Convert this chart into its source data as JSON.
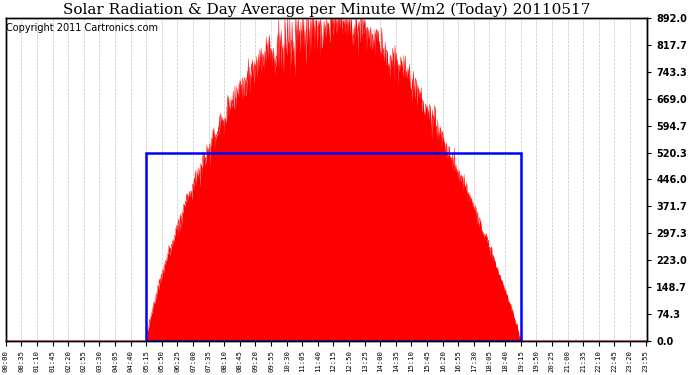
{
  "title": "Solar Radiation & Day Average per Minute W/m2 (Today) 20110517",
  "copyright": "Copyright 2011 Cartronics.com",
  "y_max": 892.0,
  "y_ticks": [
    0.0,
    74.3,
    148.7,
    223.0,
    297.3,
    371.7,
    446.0,
    520.3,
    594.7,
    669.0,
    743.3,
    817.7,
    892.0
  ],
  "solar_color": "#ff0000",
  "avg_box_color": "#0000ff",
  "bg_color": "#ffffff",
  "grid_color": "#aaaaaa",
  "sunrise_min": 315,
  "sunset_min": 1155,
  "avg_level": 520.3,
  "peak_value": 892.0,
  "peak_min": 720,
  "total_minutes": 1440,
  "tick_step_min": 35,
  "copyright_fontsize": 7,
  "title_fontsize": 11
}
